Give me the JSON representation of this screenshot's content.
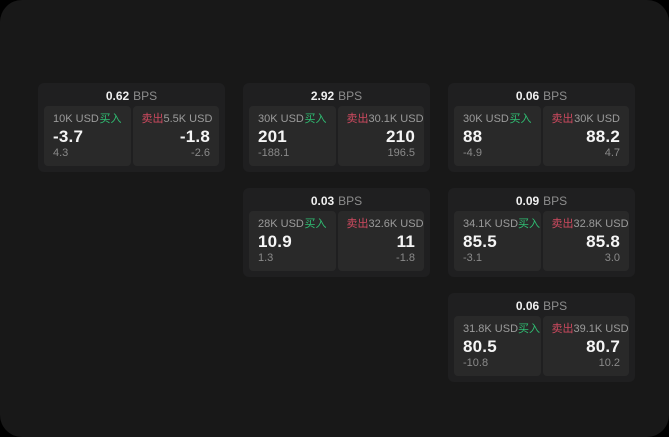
{
  "colors": {
    "outer_bg": "#000000",
    "surface_bg": "#181818",
    "card_bg": "#1f1f20",
    "panel_bg": "#292929",
    "text_primary": "#f5f5f5",
    "text_muted": "#8d8d8d",
    "buy_green": "#2fbf73",
    "sell_red": "#cf4a60"
  },
  "labels": {
    "bps": "BPS",
    "buy": "买入",
    "sell": "卖出"
  },
  "cards": [
    {
      "row": 1,
      "col": 1,
      "bps": "0.62",
      "buy": {
        "amount": "10K USD",
        "price": "-3.7",
        "delta": "4.3"
      },
      "sell": {
        "amount": "5.5K USD",
        "price": "-1.8",
        "delta": "-2.6"
      }
    },
    {
      "row": 1,
      "col": 2,
      "bps": "2.92",
      "buy": {
        "amount": "30K USD",
        "price": "201",
        "delta": "-188.1"
      },
      "sell": {
        "amount": "30.1K USD",
        "price": "210",
        "delta": "196.5"
      }
    },
    {
      "row": 1,
      "col": 3,
      "bps": "0.06",
      "buy": {
        "amount": "30K USD",
        "price": "88",
        "delta": "-4.9"
      },
      "sell": {
        "amount": "30K USD",
        "price": "88.2",
        "delta": "4.7"
      }
    },
    {
      "row": 2,
      "col": 2,
      "bps": "0.03",
      "buy": {
        "amount": "28K USD",
        "price": "10.9",
        "delta": "1.3"
      },
      "sell": {
        "amount": "32.6K USD",
        "price": "11",
        "delta": "-1.8"
      }
    },
    {
      "row": 2,
      "col": 3,
      "bps": "0.09",
      "buy": {
        "amount": "34.1K USD",
        "price": "85.5",
        "delta": "-3.1"
      },
      "sell": {
        "amount": "32.8K USD",
        "price": "85.8",
        "delta": "3.0"
      }
    },
    {
      "row": 3,
      "col": 3,
      "bps": "0.06",
      "buy": {
        "amount": "31.8K USD",
        "price": "80.5",
        "delta": "-10.8"
      },
      "sell": {
        "amount": "39.1K USD",
        "price": "80.7",
        "delta": "10.2"
      }
    }
  ]
}
